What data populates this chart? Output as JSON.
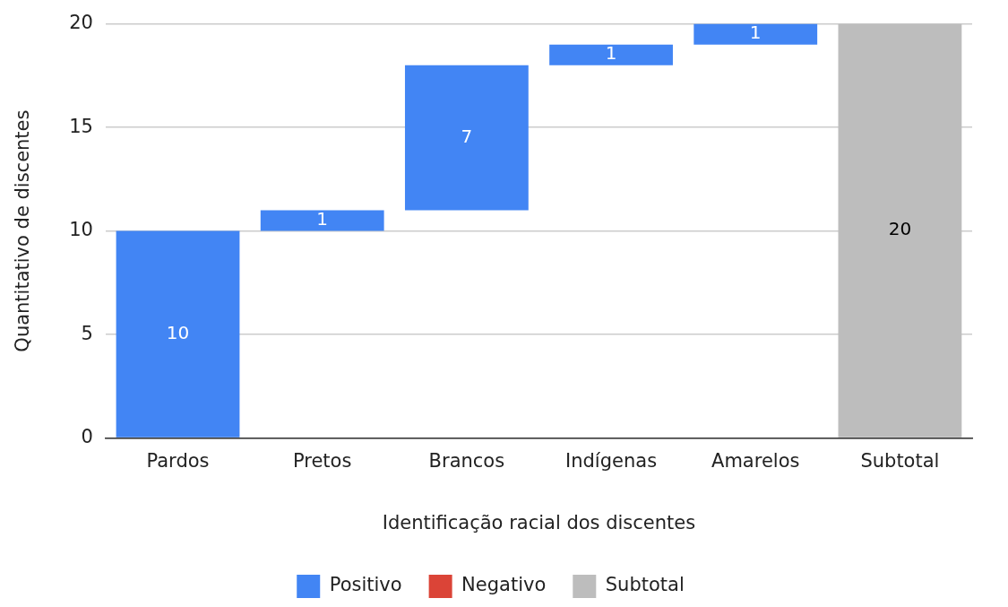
{
  "chart_data": {
    "type": "bar",
    "xlabel": "Identificação racial dos discentes",
    "ylabel": "Quantitativo de discentes",
    "categories": [
      "Pardos",
      "Pretos",
      "Brancos",
      "Indígenas",
      "Amarelos",
      "Subtotal"
    ],
    "series": [
      {
        "name": "Positivo",
        "color": "#4285f4",
        "values": [
          10,
          1,
          7,
          1,
          1,
          null
        ],
        "base": [
          0,
          10,
          11,
          18,
          19,
          null
        ]
      },
      {
        "name": "Negativo",
        "color": "#db4437",
        "values": [
          null,
          null,
          null,
          null,
          null,
          null
        ]
      },
      {
        "name": "Subtotal",
        "color": "#bdbdbd",
        "values": [
          null,
          null,
          null,
          null,
          null,
          20
        ],
        "base": [
          null,
          null,
          null,
          null,
          null,
          0
        ]
      }
    ],
    "ylim": [
      0,
      20
    ],
    "yticks": [
      0,
      5,
      10,
      15,
      20
    ],
    "grid": "y",
    "legend": "bottom",
    "data_labels": true
  }
}
